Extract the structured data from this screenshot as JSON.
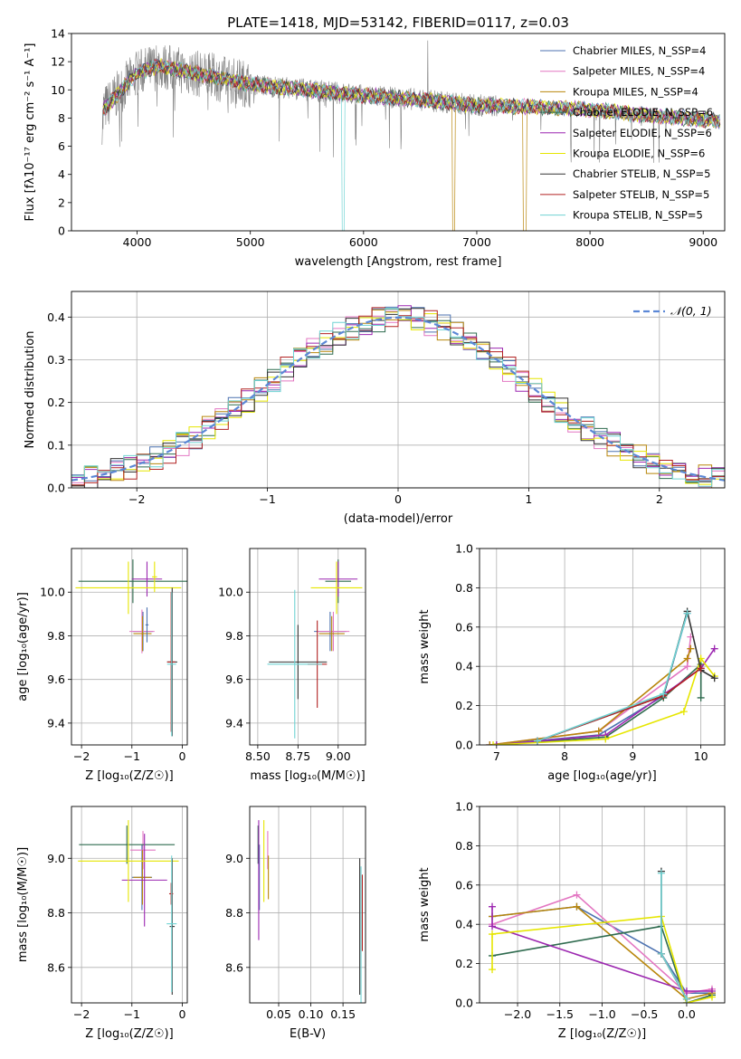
{
  "figure_title": "PLATE=1418, MJD=53142, FIBERID=0117, z=0.03",
  "chart_data": [
    {
      "id": "spectrum",
      "type": "line",
      "title": "PLATE=1418, MJD=53142, FIBERID=0117, z=0.03",
      "xlabel": "wavelength [Angstrom, rest frame]",
      "ylabel": "Flux [fλ10⁻¹⁷ erg cm⁻² s⁻¹ A⁻¹]",
      "xlim": [
        3420,
        9190
      ],
      "ylim": [
        0,
        14
      ],
      "xticks": [
        4000,
        5000,
        6000,
        7000,
        8000,
        9000
      ],
      "yticks": [
        0,
        2,
        4,
        6,
        8,
        10,
        12,
        14
      ],
      "grid": false,
      "legend_position": "top-right",
      "series": [
        {
          "name": "Chabrier MILES, N_SSP=4",
          "color": "#4c72b0"
        },
        {
          "name": "Salpeter MILES, N_SSP=4",
          "color": "#e377c2"
        },
        {
          "name": "Kroupa MILES, N_SSP=4",
          "color": "#b8860b"
        },
        {
          "name": "Chabrier ELODIE, N_SSP=6",
          "color": "#2f6b4f"
        },
        {
          "name": "Salpeter ELODIE, N_SSP=6",
          "color": "#9c27b0"
        },
        {
          "name": "Kroupa ELODIE, N_SSP=6",
          "color": "#e6e600"
        },
        {
          "name": "Chabrier STELIB, N_SSP=5",
          "color": "#333333"
        },
        {
          "name": "Salpeter STELIB, N_SSP=5",
          "color": "#b22222"
        },
        {
          "name": "Kroupa STELIB, N_SSP=5",
          "color": "#6fd3d3"
        }
      ],
      "data_color": "#808080",
      "continuum": {
        "x": [
          3700,
          4000,
          4200,
          4500,
          5000,
          5500,
          6000,
          6500,
          7000,
          7500,
          8000,
          8500,
          9000,
          9150
        ],
        "y": [
          8.6,
          11.2,
          11.7,
          11.2,
          10.4,
          10.0,
          9.6,
          9.3,
          8.9,
          8.8,
          8.6,
          8.2,
          7.9,
          7.8
        ]
      }
    },
    {
      "id": "residuals",
      "type": "line",
      "xlabel": "(data-model)/error",
      "ylabel": "Normed distribution",
      "xlim": [
        -2.5,
        2.5
      ],
      "ylim": [
        0,
        0.46
      ],
      "xticks": [
        -2,
        -1,
        0,
        1,
        2
      ],
      "yticks": [
        0.0,
        0.1,
        0.2,
        0.3,
        0.4
      ],
      "grid": true,
      "legend_position": "top-right",
      "legend": [
        "𝒩(0, 1)"
      ],
      "normal_color": "#5b87d6",
      "hist_bin_start": -2.5,
      "hist_bin_width": 0.1
    },
    {
      "id": "age_vs_Z",
      "type": "scatter",
      "xlabel": "Z [log₁₀(Z/Z☉)]",
      "ylabel": "age  [log₁₀(age/yr)]",
      "xlim": [
        -2.2,
        0.1
      ],
      "ylim": [
        9.3,
        10.2
      ],
      "xticks": [
        -2,
        -1,
        0
      ],
      "yticks": [
        9.4,
        9.6,
        9.8,
        10.0
      ],
      "grid": true,
      "points": [
        {
          "series": 0,
          "x": -0.78,
          "y": 9.82,
          "xerr": 0.2,
          "yerr": 0.09
        },
        {
          "series": 1,
          "x": -0.8,
          "y": 9.82,
          "xerr": 0.25,
          "yerr": 0.1
        },
        {
          "series": 2,
          "x": -0.79,
          "y": 9.81,
          "xerr": 0.18,
          "yerr": 0.08
        },
        {
          "series": 3,
          "x": -0.98,
          "y": 10.05,
          "xerr": 1.08,
          "yerr": 0.1
        },
        {
          "series": 4,
          "x": -0.7,
          "y": 10.06,
          "xerr": 0.3,
          "yerr": 0.08
        },
        {
          "series": 5,
          "x": -1.07,
          "y": 10.02,
          "xerr": 1.05,
          "yerr": 0.12
        },
        {
          "series": 6,
          "x": -0.2,
          "y": 9.68,
          "xerr": 0.1,
          "yerr": 0.34
        },
        {
          "series": 7,
          "x": -0.22,
          "y": 9.68,
          "xerr": 0.08,
          "yerr": 0.32
        },
        {
          "series": 8,
          "x": -0.21,
          "y": 9.67,
          "xerr": 0.09,
          "yerr": 0.33
        },
        {
          "series": 5,
          "x": -0.55,
          "y": 10.07,
          "xerr": 0.05,
          "yerr": 0.07
        },
        {
          "series": 0,
          "x": -0.7,
          "y": 9.85,
          "xerr": 0.03,
          "yerr": 0.08
        }
      ]
    },
    {
      "id": "age_vs_mass",
      "type": "scatter",
      "xlabel": "mass [log₁₀(M/M☉)]",
      "ylabel": "",
      "xlim": [
        8.45,
        9.17
      ],
      "ylim": [
        9.3,
        10.2
      ],
      "xticks": [
        8.5,
        8.75,
        9.0
      ],
      "yticks": [
        9.4,
        9.6,
        9.8,
        10.0
      ],
      "grid": true,
      "points": [
        {
          "series": 0,
          "x": 8.95,
          "y": 9.82,
          "xerr": 0.1,
          "yerr": 0.09
        },
        {
          "series": 1,
          "x": 8.97,
          "y": 9.82,
          "xerr": 0.1,
          "yerr": 0.09
        },
        {
          "series": 2,
          "x": 8.96,
          "y": 9.81,
          "xerr": 0.08,
          "yerr": 0.08
        },
        {
          "series": 3,
          "x": 9.0,
          "y": 10.05,
          "xerr": 0.08,
          "yerr": 0.1
        },
        {
          "series": 4,
          "x": 9.0,
          "y": 10.06,
          "xerr": 0.12,
          "yerr": 0.08
        },
        {
          "series": 5,
          "x": 8.99,
          "y": 10.02,
          "xerr": 0.16,
          "yerr": 0.12
        },
        {
          "series": 6,
          "x": 8.75,
          "y": 9.68,
          "xerr": 0.18,
          "yerr": 0.17
        },
        {
          "series": 7,
          "x": 8.87,
          "y": 9.67,
          "xerr": 0.06,
          "yerr": 0.2
        },
        {
          "series": 8,
          "x": 8.73,
          "y": 9.67,
          "xerr": 0.17,
          "yerr": 0.34
        }
      ]
    },
    {
      "id": "weight_vs_age",
      "type": "line",
      "xlabel": "age  [log₁₀(age/yr)]",
      "ylabel": "mass weight",
      "xlim": [
        6.75,
        10.35
      ],
      "ylim": [
        0,
        1.0
      ],
      "xticks": [
        7,
        8,
        9,
        10
      ],
      "yticks": [
        0.0,
        0.2,
        0.4,
        0.6,
        0.8,
        1.0
      ],
      "grid": true,
      "series": [
        {
          "series": 0,
          "x": [
            6.9,
            8.5,
            9.45,
            9.8
          ],
          "y": [
            0.0,
            0.05,
            0.25,
            0.67
          ]
        },
        {
          "series": 1,
          "x": [
            6.9,
            8.5,
            9.8,
            9.85
          ],
          "y": [
            0.0,
            0.07,
            0.4,
            0.55
          ]
        },
        {
          "series": 2,
          "x": [
            6.9,
            8.5,
            9.8,
            9.85
          ],
          "y": [
            0.0,
            0.07,
            0.44,
            0.49
          ]
        },
        {
          "series": 3,
          "x": [
            7.0,
            8.6,
            9.45,
            10.0,
            10.0
          ],
          "y": [
            0.0,
            0.04,
            0.24,
            0.41,
            0.24
          ]
        },
        {
          "series": 4,
          "x": [
            7.0,
            8.6,
            10.0,
            10.2
          ],
          "y": [
            0.0,
            0.05,
            0.39,
            0.49
          ]
        },
        {
          "series": 5,
          "x": [
            6.95,
            8.6,
            9.75,
            10.0,
            10.2
          ],
          "y": [
            0.0,
            0.03,
            0.17,
            0.44,
            0.35
          ]
        },
        {
          "series": 6,
          "x": [
            7.6,
            9.45,
            9.8,
            10.0,
            10.2
          ],
          "y": [
            0.02,
            0.25,
            0.68,
            0.38,
            0.34
          ]
        },
        {
          "series": 7,
          "x": [
            7.6,
            9.45,
            10.0
          ],
          "y": [
            0.02,
            0.25,
            0.39
          ]
        },
        {
          "series": 8,
          "x": [
            7.6,
            9.45,
            9.8
          ],
          "y": [
            0.02,
            0.26,
            0.67
          ]
        }
      ]
    },
    {
      "id": "mass_vs_Z",
      "type": "scatter",
      "xlabel": "Z [log₁₀(Z/Z☉)]",
      "ylabel": "mass [log₁₀(M/M☉)]",
      "xlim": [
        -2.2,
        0.1
      ],
      "ylim": [
        8.47,
        9.19
      ],
      "xticks": [
        -2,
        -1,
        0
      ],
      "yticks": [
        8.6,
        8.8,
        9.0
      ],
      "grid": true,
      "points": [
        {
          "series": 0,
          "x": -0.8,
          "y": 8.93,
          "xerr": 0.2,
          "yerr": 0.12
        },
        {
          "series": 1,
          "x": -0.78,
          "y": 9.03,
          "xerr": 0.25,
          "yerr": 0.07
        },
        {
          "series": 2,
          "x": -0.79,
          "y": 8.93,
          "xerr": 0.18,
          "yerr": 0.1
        },
        {
          "series": 3,
          "x": -1.1,
          "y": 9.05,
          "xerr": 0.95,
          "yerr": 0.07
        },
        {
          "series": 4,
          "x": -0.75,
          "y": 8.92,
          "xerr": 0.45,
          "yerr": 0.17
        },
        {
          "series": 5,
          "x": -1.07,
          "y": 8.99,
          "xerr": 1.0,
          "yerr": 0.15
        },
        {
          "series": 6,
          "x": -0.2,
          "y": 8.75,
          "xerr": 0.05,
          "yerr": 0.25
        },
        {
          "series": 7,
          "x": -0.22,
          "y": 8.87,
          "xerr": 0.04,
          "yerr": 0.04
        },
        {
          "series": 8,
          "x": -0.21,
          "y": 8.76,
          "xerr": 0.1,
          "yerr": 0.25
        }
      ]
    },
    {
      "id": "mass_vs_EBV",
      "type": "scatter",
      "xlabel": "E(B-V)",
      "ylabel": "",
      "xlim": [
        0.005,
        0.185
      ],
      "ylim": [
        8.47,
        9.19
      ],
      "xticks": [
        0.05,
        0.1,
        0.15
      ],
      "yticks": [
        8.6,
        8.8,
        9.0
      ],
      "grid": true,
      "points": [
        {
          "series": 0,
          "x": 0.02,
          "y": 8.93,
          "yerr": 0.12
        },
        {
          "series": 1,
          "x": 0.033,
          "y": 9.03,
          "yerr": 0.07
        },
        {
          "series": 2,
          "x": 0.034,
          "y": 8.93,
          "yerr": 0.08
        },
        {
          "series": 3,
          "x": 0.018,
          "y": 9.05,
          "yerr": 0.07
        },
        {
          "series": 4,
          "x": 0.019,
          "y": 8.92,
          "yerr": 0.22
        },
        {
          "series": 5,
          "x": 0.027,
          "y": 8.99,
          "yerr": 0.15
        },
        {
          "series": 6,
          "x": 0.176,
          "y": 8.75,
          "yerr": 0.25
        },
        {
          "series": 7,
          "x": 0.18,
          "y": 8.8,
          "yerr": 0.14
        },
        {
          "series": 8,
          "x": 0.178,
          "y": 8.72,
          "yerr": 0.25
        }
      ]
    },
    {
      "id": "weight_vs_Z",
      "type": "line",
      "xlabel": "Z [log₁₀(Z/Z☉)]",
      "ylabel": "mass weight",
      "xlim": [
        -2.45,
        0.45
      ],
      "ylim": [
        0,
        1.0
      ],
      "xticks": [
        -2.0,
        -1.5,
        -1.0,
        -0.5,
        0.0
      ],
      "yticks": [
        0.0,
        0.2,
        0.4,
        0.6,
        0.8,
        1.0
      ],
      "grid": true,
      "series": [
        {
          "series": 0,
          "x": [
            -2.3,
            -1.3,
            -0.3,
            0.0,
            0.3
          ],
          "y": [
            0.44,
            0.49,
            0.25,
            0.05,
            0.05
          ]
        },
        {
          "series": 1,
          "x": [
            -2.3,
            -1.3,
            0.0,
            0.3
          ],
          "y": [
            0.4,
            0.55,
            0.05,
            0.07
          ]
        },
        {
          "series": 2,
          "x": [
            -2.3,
            -1.3,
            0.0,
            0.3
          ],
          "y": [
            0.44,
            0.49,
            0.02,
            0.05
          ]
        },
        {
          "series": 3,
          "x": [
            -2.3,
            -0.3,
            0.0,
            0.3
          ],
          "y": [
            0.24,
            0.39,
            0.0,
            0.04
          ]
        },
        {
          "series": 4,
          "x": [
            -2.3,
            -2.3,
            0.0,
            0.3
          ],
          "y": [
            0.49,
            0.39,
            0.06,
            0.06
          ]
        },
        {
          "series": 5,
          "x": [
            -2.3,
            -2.3,
            -0.3,
            0.0,
            0.3
          ],
          "y": [
            0.17,
            0.35,
            0.44,
            0.0,
            0.03
          ]
        },
        {
          "series": 6,
          "x": [
            -0.3,
            -0.3,
            0.0
          ],
          "y": [
            0.67,
            0.25,
            0.02
          ]
        },
        {
          "series": 7,
          "x": [
            -0.3,
            0.0
          ],
          "y": [
            0.25,
            0.02
          ]
        },
        {
          "series": 8,
          "x": [
            -0.3,
            -0.3,
            0.0
          ],
          "y": [
            0.66,
            0.25,
            0.02
          ]
        }
      ]
    }
  ]
}
